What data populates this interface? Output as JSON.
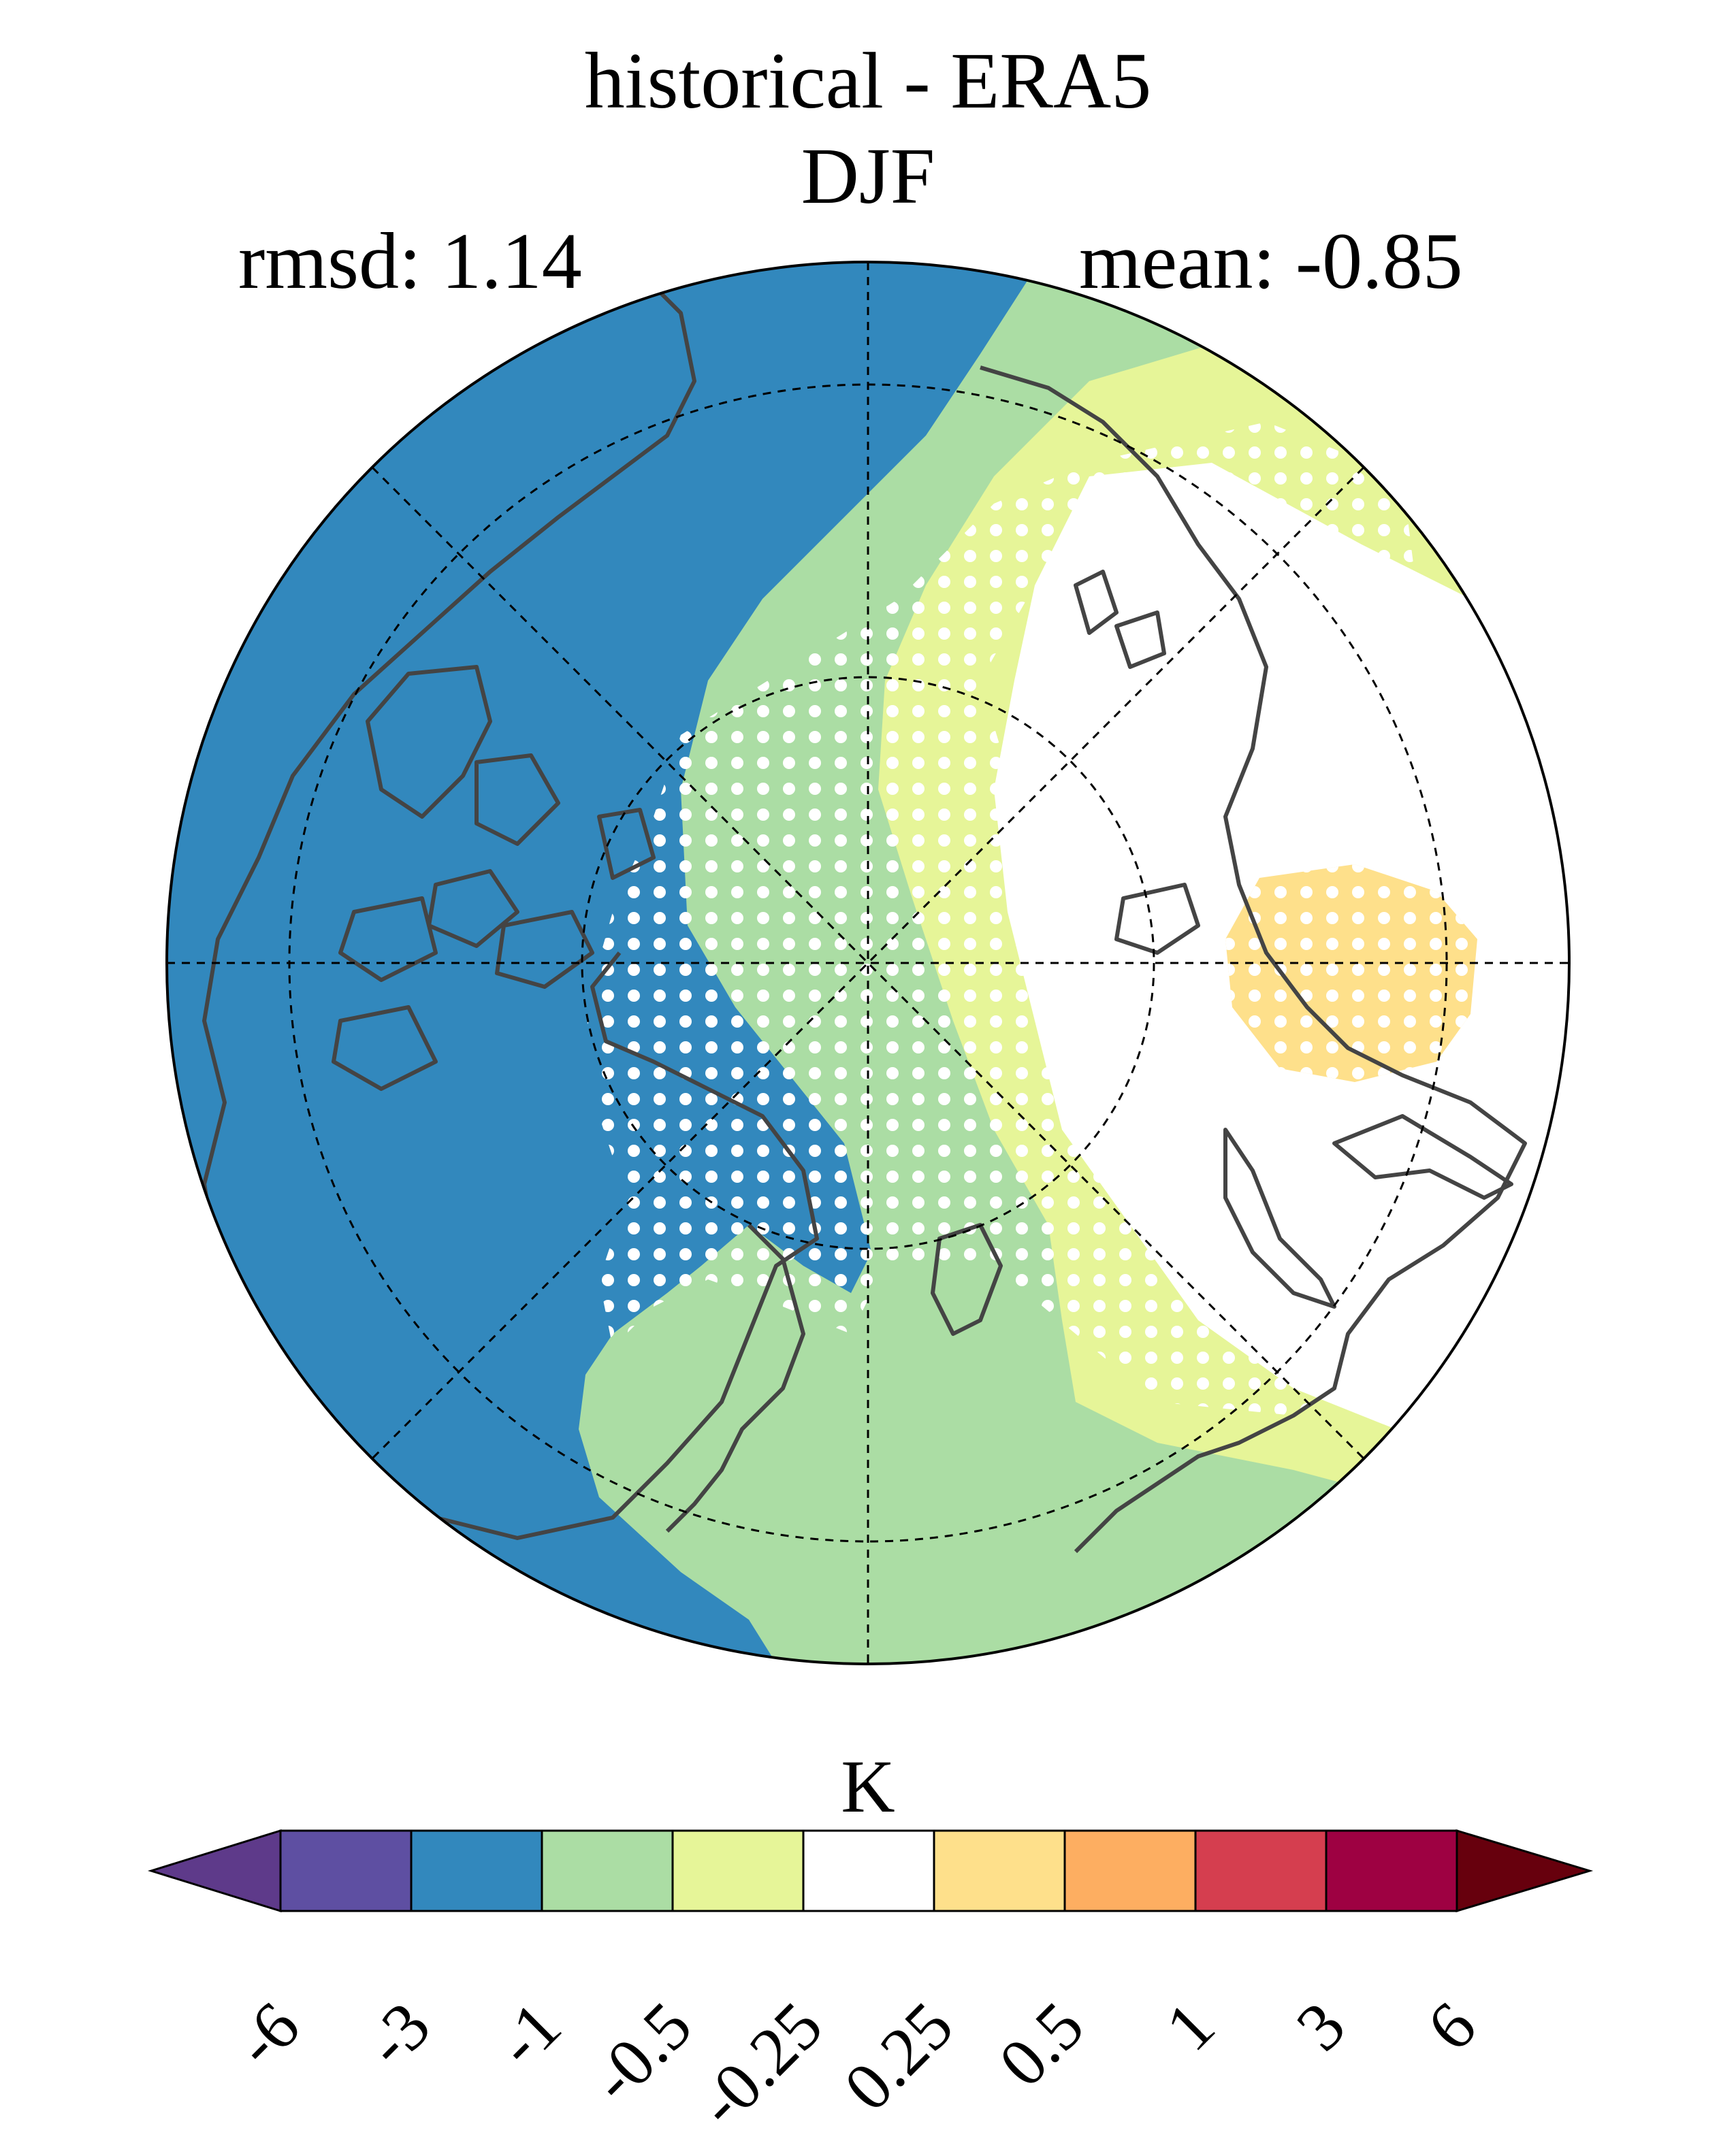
{
  "title": "historical - ERA5",
  "season": "DJF",
  "stats": {
    "rmsd": "rmsd: 1.14",
    "mean": "mean: -0.85"
  },
  "colorbar": {
    "unit": "K",
    "levels": [
      "-6",
      "-3",
      "-1",
      "-0.5",
      "-0.25",
      "0.25",
      "0.5",
      "1",
      "3",
      "6"
    ],
    "colors": [
      "#5e4fa2",
      "#3288bd",
      "#abdda4",
      "#e6f598",
      "#ffffff",
      "#fee08b",
      "#fdae61",
      "#d53e4f",
      "#9e0142"
    ],
    "under_color": "#5e3a8a",
    "over_color": "#67000d"
  },
  "map": {
    "projection": "north polar stereographic",
    "field_colors": {
      "cold": "#3288bd",
      "cool": "#abdda4",
      "mild": "#e6f598",
      "neutral": "#ffffff",
      "warm": "#fee08b"
    },
    "stipple_color": "#ffffff",
    "coastline_color": "#444444",
    "grid_color": "#000000"
  }
}
